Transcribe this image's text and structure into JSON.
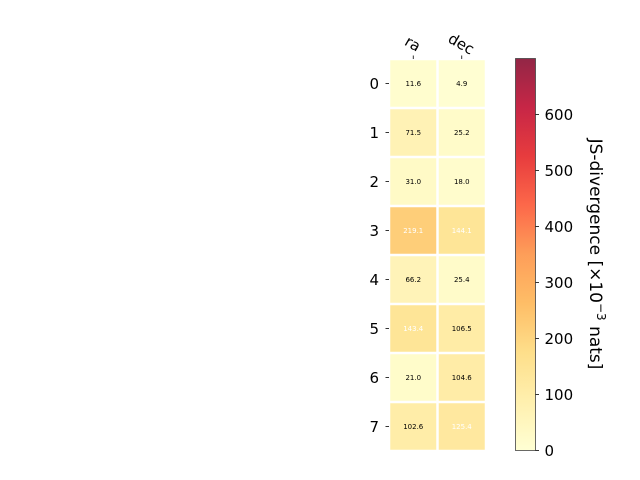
{
  "chart_data": {
    "type": "heatmap",
    "columns": [
      "ra",
      "dec"
    ],
    "rows": [
      "0",
      "1",
      "2",
      "3",
      "4",
      "5",
      "6",
      "7"
    ],
    "values": [
      [
        11.6,
        4.9
      ],
      [
        71.5,
        25.2
      ],
      [
        31.0,
        18.0
      ],
      [
        219.1,
        144.1
      ],
      [
        66.2,
        25.4
      ],
      [
        143.4,
        106.5
      ],
      [
        21.0,
        104.6
      ],
      [
        102.6,
        125.4
      ]
    ],
    "cell_labels": [
      [
        "11.6",
        "4.9"
      ],
      [
        "71.5",
        "25.2"
      ],
      [
        "31.0",
        "18.0"
      ],
      [
        "219.1",
        "144.1"
      ],
      [
        "66.2",
        "25.4"
      ],
      [
        "143.4",
        "106.5"
      ],
      [
        "21.0",
        "104.6"
      ],
      [
        "102.6",
        "125.4"
      ]
    ],
    "colorbar": {
      "label_main": "JS-divergence [×10",
      "label_exp": "−3",
      "label_unit": " nats]",
      "range": [
        0,
        700
      ],
      "ticks": [
        "0",
        "100",
        "200",
        "300",
        "400",
        "500",
        "600"
      ],
      "colormap": "YlOrRd",
      "colormap_stops": [
        "#ffffcc",
        "#ffeda0",
        "#fed976",
        "#feb24c",
        "#fd8d3c",
        "#fc4e2a",
        "#e31a1c",
        "#bd0026",
        "#800026"
      ]
    },
    "grid": false,
    "legend": "none"
  }
}
